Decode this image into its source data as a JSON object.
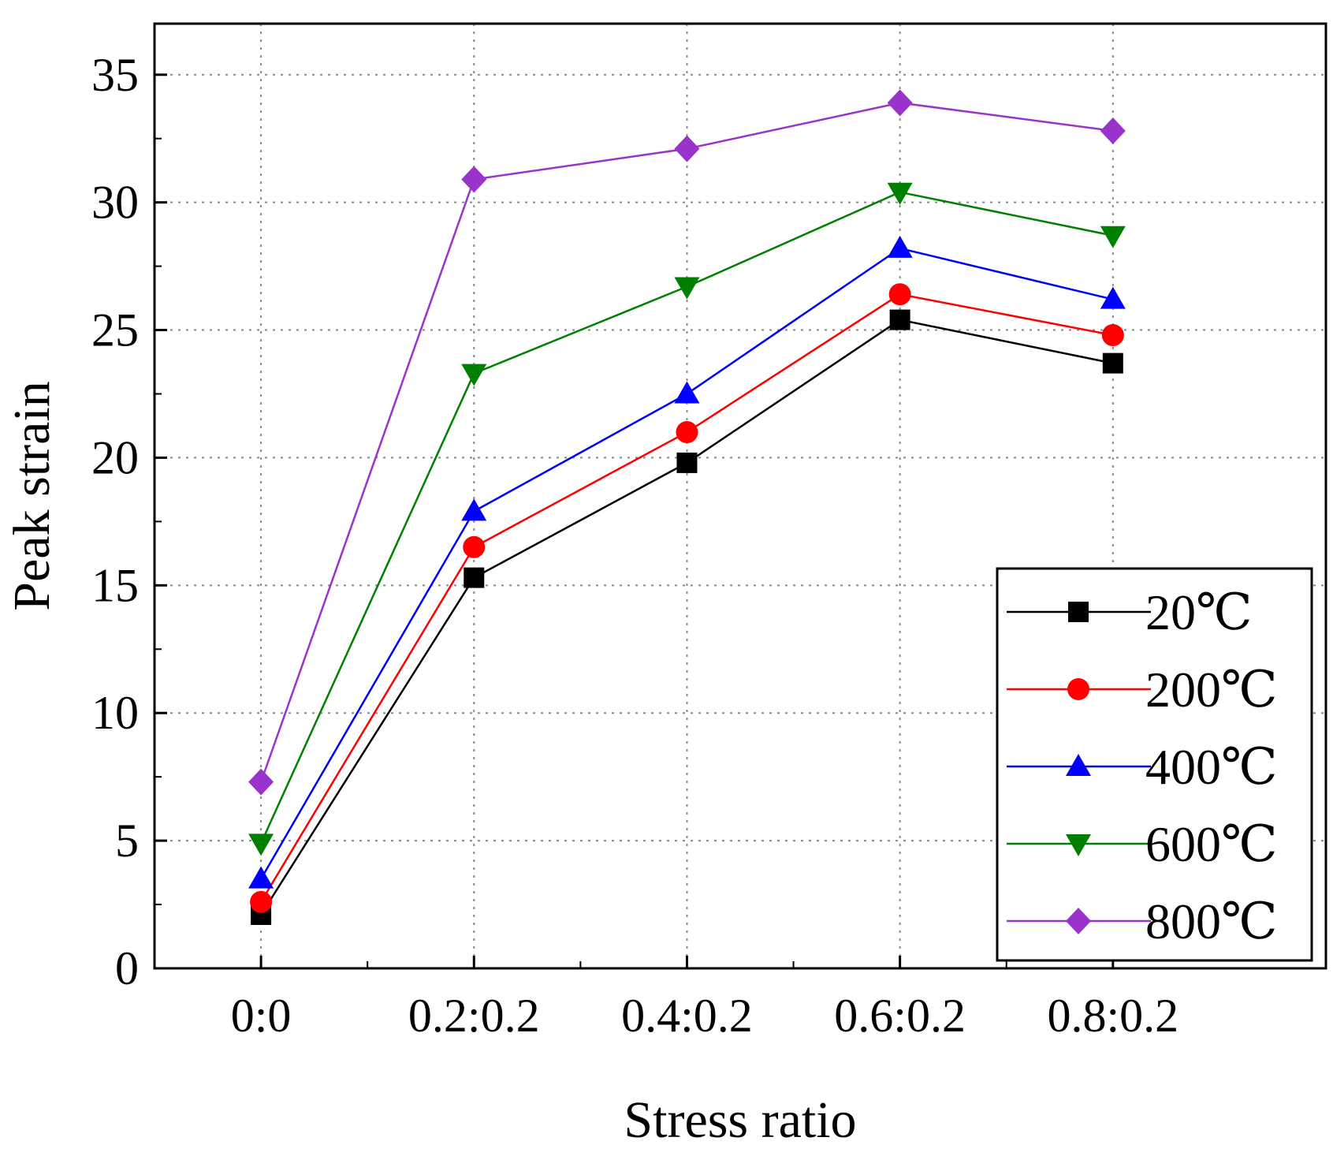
{
  "chart_data": {
    "type": "line",
    "title": "",
    "xlabel": "Stress ratio",
    "ylabel": "Peak strain",
    "categories": [
      "0:0",
      "0.2:0.2",
      "0.4:0.2",
      "0.6:0.2",
      "0.8:0.2"
    ],
    "ylim": [
      0,
      37
    ],
    "yticks": [
      0,
      5,
      10,
      15,
      20,
      25,
      30,
      35
    ],
    "grid": true,
    "legend_position": "bottom-right",
    "series": [
      {
        "name": "20℃",
        "color": "#000000",
        "marker": "square",
        "values": [
          2.1,
          15.3,
          19.8,
          25.4,
          23.7
        ]
      },
      {
        "name": "200℃",
        "color": "#ff0000",
        "marker": "circle",
        "values": [
          2.6,
          16.5,
          21.0,
          26.4,
          24.8
        ]
      },
      {
        "name": "400℃",
        "color": "#0000ff",
        "marker": "triangle-up",
        "values": [
          3.5,
          17.9,
          22.5,
          28.2,
          26.2
        ]
      },
      {
        "name": "600℃",
        "color": "#008000",
        "marker": "triangle-down",
        "values": [
          4.9,
          23.3,
          26.7,
          30.4,
          28.7
        ]
      },
      {
        "name": "800℃",
        "color": "#9933cc",
        "marker": "diamond",
        "values": [
          7.3,
          30.9,
          32.1,
          33.9,
          32.8
        ]
      }
    ]
  }
}
